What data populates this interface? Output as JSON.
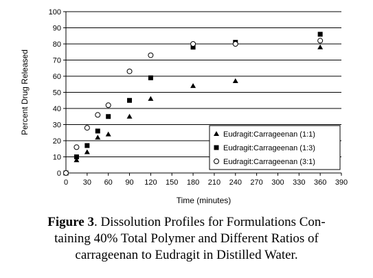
{
  "chart_data": {
    "type": "scatter",
    "xlabel": "Time (minutes)",
    "ylabel": "Percent Drug Released",
    "xlim": [
      0,
      390
    ],
    "ylim": [
      0,
      100
    ],
    "xticks": [
      0,
      30,
      60,
      90,
      120,
      150,
      180,
      210,
      240,
      270,
      300,
      330,
      360,
      390
    ],
    "xtick_labels": [
      "0",
      "30",
      "60",
      "90",
      "120",
      "150",
      "180",
      "210",
      "240",
      "270",
      "300",
      "330",
      "360",
      "390"
    ],
    "yticks": [
      0,
      10,
      20,
      30,
      40,
      50,
      60,
      70,
      80,
      90,
      100
    ],
    "ytick_labels": [
      "0",
      "10",
      "20",
      "30",
      "40",
      "50",
      "60",
      "70",
      "80",
      "90",
      "100"
    ],
    "grid": "horizontal",
    "legend_position": "bottom-right",
    "series": [
      {
        "name": "Eudragit:Carrageenan (1:1)",
        "marker": "triangle",
        "x": [
          0,
          15,
          30,
          45,
          60,
          90,
          120,
          180,
          240,
          360
        ],
        "y": [
          0,
          8,
          13,
          22,
          24,
          35,
          46,
          54,
          57,
          78
        ]
      },
      {
        "name": "Eudragit:Carrageenan (1:3)",
        "marker": "square",
        "x": [
          0,
          15,
          30,
          45,
          60,
          90,
          120,
          180,
          240,
          360
        ],
        "y": [
          0,
          10,
          17,
          26,
          35,
          45,
          59,
          78,
          81,
          86
        ]
      },
      {
        "name": "Eudragit:Carrageenan (3:1)",
        "marker": "circle",
        "x": [
          0,
          15,
          30,
          45,
          60,
          90,
          120,
          180,
          240,
          360
        ],
        "y": [
          0,
          16,
          28,
          36,
          42,
          63,
          73,
          80,
          80,
          82
        ]
      }
    ]
  },
  "caption": {
    "label": "Figure 3",
    "line1": ". Dissolution Profiles for Formulations Con-",
    "line2": "taining 40% Total Polymer and Different Ratios of",
    "line3": "carrageenan to Eudragit in Distilled Water."
  }
}
